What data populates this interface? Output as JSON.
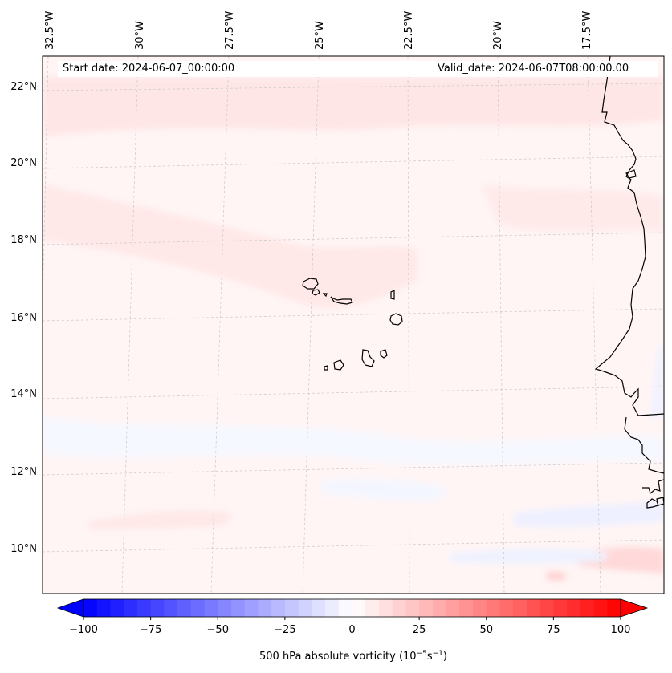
{
  "header": {
    "start_date": "Start date: 2024-06-07_00:00:00",
    "valid_date": "Valid_date: 2024-06-07T08:00:00.00"
  },
  "map": {
    "projection": "lambert-conformal",
    "field": "500 hPa absolute vorticity",
    "lat_labels": [
      "22°N",
      "20°N",
      "18°N",
      "16°N",
      "14°N",
      "12°N",
      "10°N"
    ],
    "lon_labels": [
      "32.5°W",
      "30°W",
      "27.5°W",
      "25°W",
      "22.5°W",
      "20°W",
      "17.5°W"
    ],
    "gridlines": true,
    "features": [
      "Cape Verde islands",
      "West African coastline"
    ]
  },
  "colorbar": {
    "label_main": "500 hPa absolute vorticity (10",
    "label_exp1": "−5",
    "label_mid": "s",
    "label_exp2": "−1",
    "label_end": ")",
    "ticks": [
      "−100",
      "−75",
      "−50",
      "−25",
      "0",
      "25",
      "50",
      "75",
      "100"
    ],
    "tick_values": [
      -100,
      -75,
      -50,
      -25,
      0,
      25,
      50,
      75,
      100
    ],
    "range": [
      -100,
      100
    ],
    "step": 5,
    "extend": "both",
    "colors": {
      "negative": "#0000ff",
      "center": "#ffffff",
      "positive": "#ff0000"
    }
  }
}
